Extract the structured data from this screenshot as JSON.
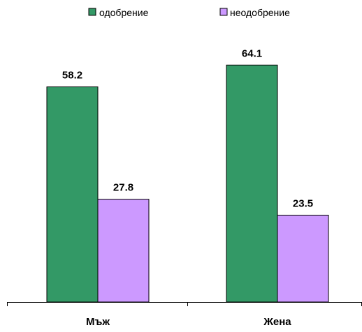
{
  "chart_data": {
    "type": "bar",
    "categories": [
      "Мъж",
      "Жена"
    ],
    "series": [
      {
        "name": "одобрение",
        "values": [
          58.2,
          64.1
        ],
        "color": "#339966"
      },
      {
        "name": "неодобрение",
        "values": [
          27.8,
          23.5
        ],
        "color": "#CC99FF"
      }
    ],
    "value_labels": [
      [
        "58.2",
        "64.1"
      ],
      [
        "27.8",
        "23.5"
      ]
    ],
    "title": "",
    "xlabel": "",
    "ylabel": "",
    "ylim": [
      0,
      70
    ],
    "grid": false,
    "legend_position": "top-center",
    "show_data_labels": true
  }
}
